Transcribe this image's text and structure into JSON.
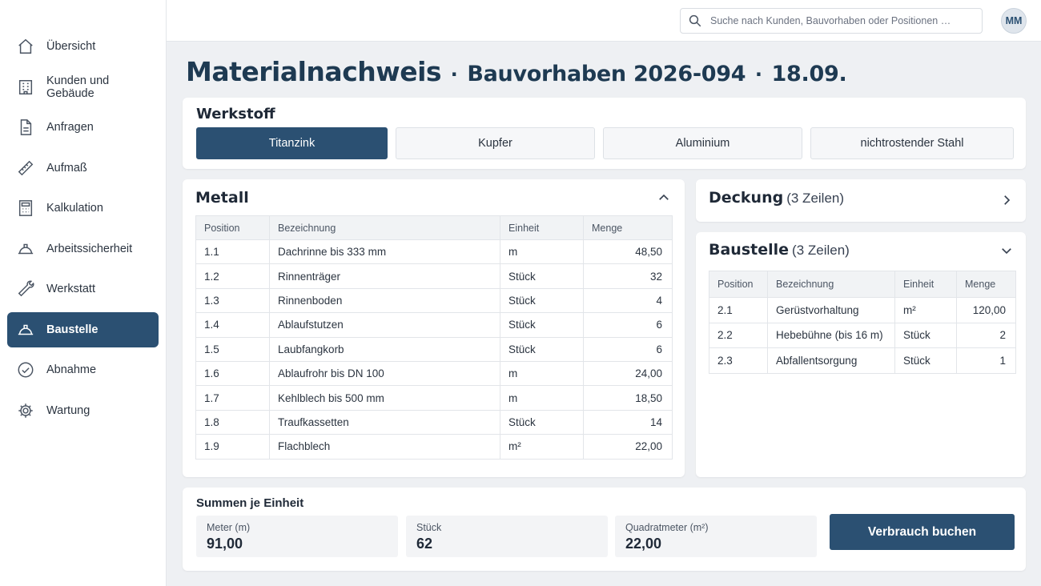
{
  "sidebar": {
    "items": [
      {
        "label": "Übersicht",
        "icon": "home-icon",
        "active": false
      },
      {
        "label": "Kunden und Gebäude",
        "icon": "building-icon",
        "active": false
      },
      {
        "label": "Anfragen",
        "icon": "document-icon",
        "active": false
      },
      {
        "label": "Aufmaß",
        "icon": "ruler-icon",
        "active": false
      },
      {
        "label": "Kalkulation",
        "icon": "calculator-icon",
        "active": false
      },
      {
        "label": "Arbeitssicherheit",
        "icon": "hard-hat-icon",
        "active": false
      },
      {
        "label": "Werkstatt",
        "icon": "wrench-icon",
        "active": false
      },
      {
        "label": "Baustelle",
        "icon": "hard-hat-icon",
        "active": true
      },
      {
        "label": "Abnahme",
        "icon": "check-circle-icon",
        "active": false
      },
      {
        "label": "Wartung",
        "icon": "gear-icon",
        "active": false
      }
    ]
  },
  "header": {
    "search_placeholder": "Suche nach Kunden, Bauvorhaben oder Positionen …",
    "avatar_initials": "MM"
  },
  "page": {
    "title": "Materialnachweis",
    "separator": "·",
    "subtitle": "Bauvorhaben 2026-094",
    "date": "18.09."
  },
  "werkstoff": {
    "title": "Werkstoff",
    "tabs": [
      {
        "label": "Titanzink",
        "active": true
      },
      {
        "label": "Kupfer",
        "active": false
      },
      {
        "label": "Aluminium",
        "active": false
      },
      {
        "label": "nichtrostender Stahl",
        "active": false
      }
    ]
  },
  "metall": {
    "title": "Metall",
    "columns": [
      "Position",
      "Bezeichnung",
      "Einheit",
      "Menge"
    ],
    "rows": [
      [
        "1.1",
        "Dachrinne bis 333 mm",
        "m",
        "48,50"
      ],
      [
        "1.2",
        "Rinnenträger",
        "Stück",
        "32"
      ],
      [
        "1.3",
        "Rinnenboden",
        "Stück",
        "4"
      ],
      [
        "1.4",
        "Ablaufstutzen",
        "Stück",
        "6"
      ],
      [
        "1.5",
        "Laubfangkorb",
        "Stück",
        "6"
      ],
      [
        "1.6",
        "Ablaufrohr bis DN 100",
        "m",
        "24,00"
      ],
      [
        "1.7",
        "Kehlblech bis 500 mm",
        "m",
        "18,50"
      ],
      [
        "1.8",
        "Traufkassetten",
        "Stück",
        "14"
      ],
      [
        "1.9",
        "Flachblech",
        "m²",
        "22,00"
      ]
    ]
  },
  "deckung": {
    "title": "Deckung",
    "count": "(3 Zeilen)"
  },
  "baustelle": {
    "title": "Baustelle",
    "count": "(3 Zeilen)",
    "columns": [
      "Position",
      "Bezeichnung",
      "Einheit",
      "Menge"
    ],
    "rows": [
      [
        "2.1",
        "Gerüstvorhaltung",
        "m²",
        "120,00"
      ],
      [
        "2.2",
        "Hebebühne (bis 16 m)",
        "Stück",
        "2"
      ],
      [
        "2.3",
        "Abfallentsorgung",
        "Stück",
        "1"
      ]
    ]
  },
  "summen": {
    "title": "Summen je Einheit",
    "boxes": [
      {
        "label": "Meter (m)",
        "value": "91,00"
      },
      {
        "label": "Stück",
        "value": "62"
      },
      {
        "label": "Quadratmeter (m²)",
        "value": "22,00"
      }
    ],
    "book_label": "Verbrauch buchen"
  },
  "colors": {
    "accent": "#2b5072",
    "background": "#eef0f3"
  }
}
